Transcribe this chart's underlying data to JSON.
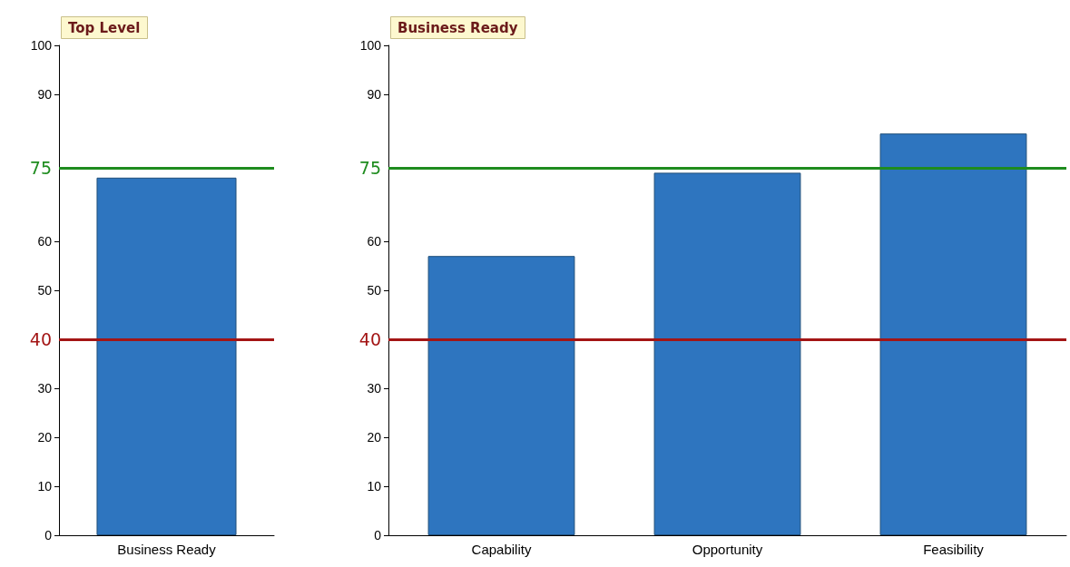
{
  "chart_data": [
    {
      "type": "bar",
      "title": "Top Level",
      "categories": [
        "Business Ready"
      ],
      "values": [
        73
      ],
      "color": "#2e75bf",
      "ylim": [
        0,
        100
      ],
      "yticks": [
        0,
        10,
        20,
        30,
        50,
        60,
        90,
        100
      ],
      "grid": false,
      "ref_lines": [
        {
          "axis": "y",
          "value": 75,
          "label": "75",
          "color": "#1e8c1e"
        },
        {
          "axis": "y",
          "value": 40,
          "label": "40",
          "color": "#a31515"
        }
      ]
    },
    {
      "type": "bar",
      "title": "Business Ready",
      "categories": [
        "Capability",
        "Opportunity",
        "Feasibility"
      ],
      "values": [
        57,
        74,
        82
      ],
      "color": "#2e75bf",
      "ylim": [
        0,
        100
      ],
      "yticks": [
        0,
        10,
        20,
        30,
        50,
        60,
        90,
        100
      ],
      "grid": false,
      "ref_lines": [
        {
          "axis": "y",
          "value": 75,
          "label": "75",
          "color": "#1e8c1e"
        },
        {
          "axis": "y",
          "value": 40,
          "label": "40",
          "color": "#a31515"
        }
      ]
    }
  ]
}
